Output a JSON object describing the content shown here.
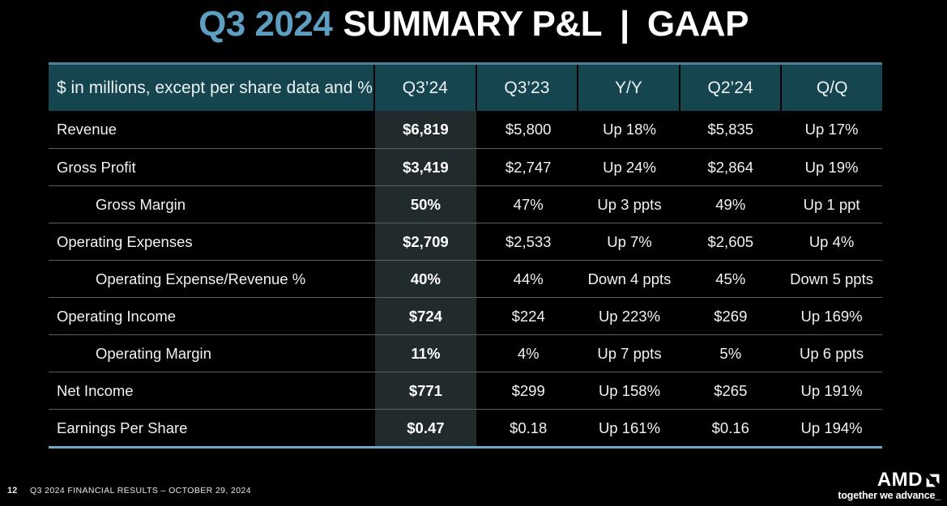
{
  "title": {
    "highlight": "Q3 2024",
    "main": "SUMMARY P&L",
    "separator": "|",
    "suffix": "GAAP"
  },
  "table": {
    "header": {
      "label": "$ in millions, except per share data and %",
      "columns": [
        "Q3’24",
        "Q3’23",
        "Y/Y",
        "Q2’24",
        "Q/Q"
      ]
    },
    "rows": [
      {
        "label": "Revenue",
        "indent": false,
        "values": [
          "$6,819",
          "$5,800",
          "Up 18%",
          "$5,835",
          "Up 17%"
        ]
      },
      {
        "label": "Gross Profit",
        "indent": false,
        "values": [
          "$3,419",
          "$2,747",
          "Up 24%",
          "$2,864",
          "Up 19%"
        ]
      },
      {
        "label": "Gross Margin",
        "indent": true,
        "values": [
          "50%",
          "47%",
          "Up 3 ppts",
          "49%",
          "Up 1 ppt"
        ]
      },
      {
        "label": "Operating Expenses",
        "indent": false,
        "values": [
          "$2,709",
          "$2,533",
          "Up 7%",
          "$2,605",
          "Up 4%"
        ]
      },
      {
        "label": "Operating Expense/Revenue %",
        "indent": true,
        "values": [
          "40%",
          "44%",
          "Down 4 ppts",
          "45%",
          "Down 5 ppts"
        ]
      },
      {
        "label": "Operating Income",
        "indent": false,
        "values": [
          "$724",
          "$224",
          "Up 223%",
          "$269",
          "Up 169%"
        ]
      },
      {
        "label": "Operating Margin",
        "indent": true,
        "values": [
          "11%",
          "4%",
          "Up 7 ppts",
          "5%",
          "Up 6 ppts"
        ]
      },
      {
        "label": "Net Income",
        "indent": false,
        "values": [
          "$771",
          "$299",
          "Up 158%",
          "$265",
          "Up 191%"
        ]
      },
      {
        "label": "Earnings Per Share",
        "indent": false,
        "values": [
          "$0.47",
          "$0.18",
          "Up 161%",
          "$0.16",
          "Up 194%"
        ]
      }
    ]
  },
  "footer": {
    "page_number": "12",
    "text": "Q3 2024 FINANCIAL RESULTS – OCTOBER 29, 2024"
  },
  "logo": {
    "brand": "AMD",
    "tagline": "together we advance_"
  },
  "colors": {
    "background": "#000000",
    "title_accent": "#5C9FC2",
    "header_background": "#15454F",
    "header_topline": "#4C8398",
    "table_bottomline": "#70A9C4",
    "highlight_column": "#212A2D",
    "row_divider": "#5E5E5E",
    "text": "#FFFFFF"
  }
}
